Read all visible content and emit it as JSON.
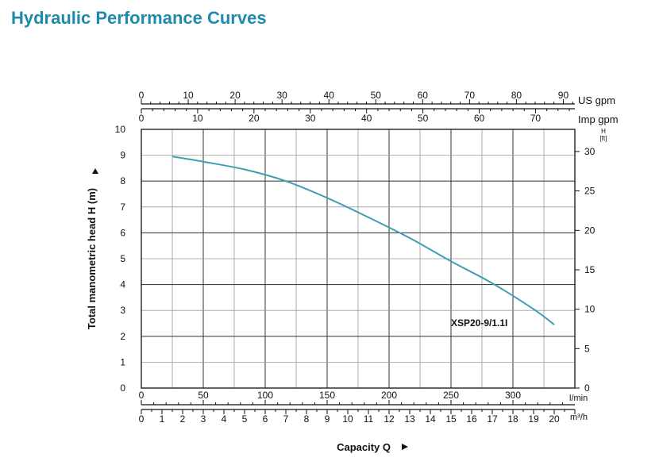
{
  "page_title": "Hydraulic Performance Curves",
  "colors": {
    "title": "#1f8aab",
    "curve": "#3d9fb0",
    "grid": "#9a9a9a",
    "frame": "#111111"
  },
  "chart_data": {
    "type": "line",
    "series": [
      {
        "name": "XSP20-9/1.1I",
        "x": [
          1.5,
          3,
          5,
          7,
          9,
          11,
          13,
          15,
          17,
          19,
          20
        ],
        "values": [
          8.95,
          8.75,
          8.45,
          8.0,
          7.35,
          6.6,
          5.8,
          4.9,
          4.05,
          3.05,
          2.45
        ]
      }
    ],
    "xlabel": "Capacity Q",
    "ylabel": "Total manometric head H (m)",
    "xlim": [
      0,
      21
    ],
    "ylim": [
      0,
      10
    ],
    "grid": true,
    "curve_label": "XSP20-9/1.1I",
    "axes": {
      "left": {
        "unit": "m",
        "ticks": [
          0,
          1,
          2,
          3,
          4,
          5,
          6,
          7,
          8,
          9,
          10
        ]
      },
      "right": {
        "unit_top": "H",
        "unit_bottom": "[ft]",
        "ticks": [
          0,
          5,
          10,
          15,
          20,
          25,
          30
        ]
      },
      "bottom_lmin": {
        "unit": "l/min",
        "ticks": [
          0,
          50,
          100,
          150,
          200,
          250,
          300
        ]
      },
      "bottom_m3h": {
        "unit": "m³/h",
        "ticks": [
          0,
          1,
          2,
          3,
          4,
          5,
          6,
          7,
          8,
          9,
          10,
          11,
          12,
          13,
          14,
          15,
          16,
          17,
          18,
          19,
          20
        ]
      },
      "top_usgpm": {
        "unit": "US gpm",
        "ticks": [
          0,
          10,
          20,
          30,
          40,
          50,
          60,
          70,
          80,
          90
        ]
      },
      "top_impgpm": {
        "unit": "Imp gpm",
        "ticks": [
          0,
          10,
          20,
          30,
          40,
          50,
          60,
          70
        ]
      }
    }
  }
}
